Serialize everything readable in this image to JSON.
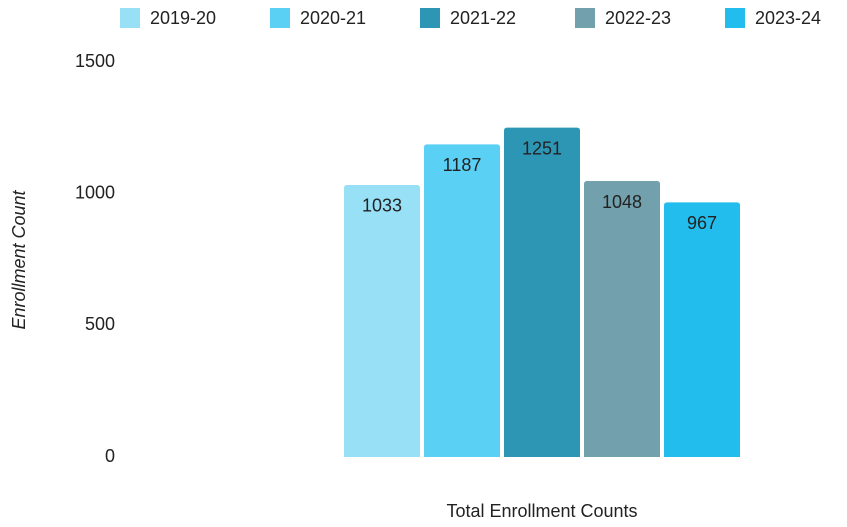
{
  "chart_data": {
    "type": "bar",
    "categories": [
      "Total Enrollment Counts"
    ],
    "y_label": "Enrollment Count",
    "series": [
      {
        "name": "2019-20",
        "color": "#97e0f5",
        "values": [
          1033
        ]
      },
      {
        "name": "2020-21",
        "color": "#5bd0f5",
        "values": [
          1187
        ]
      },
      {
        "name": "2021-22",
        "color": "#2e96b5",
        "values": [
          1251
        ]
      },
      {
        "name": "2022-23",
        "color": "#72a0ac",
        "values": [
          1048
        ]
      },
      {
        "name": "2023-24",
        "color": "#22bdec",
        "values": [
          967
        ]
      }
    ],
    "ylim": [
      0,
      1500
    ],
    "yticks": [
      0,
      500,
      1000,
      1500
    ],
    "grid": false,
    "legend": "top"
  }
}
